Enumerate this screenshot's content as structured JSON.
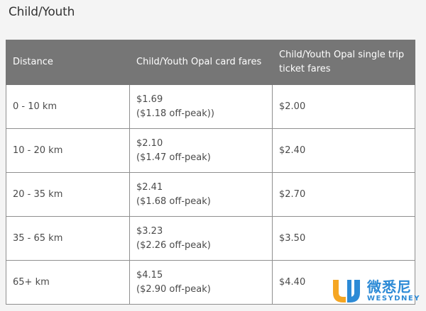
{
  "title": "Child/Youth",
  "table": {
    "headers": [
      "Distance",
      "Child/Youth Opal card fares",
      "Child/Youth Opal single trip ticket fares"
    ],
    "rows": [
      {
        "distance": "0 - 10 km",
        "opal_fare": "$1.69",
        "opal_offpeak": "($1.18 off-peak))",
        "single_fare": "$2.00"
      },
      {
        "distance": "10 - 20 km",
        "opal_fare": "$2.10",
        "opal_offpeak": "($1.47 off-peak)",
        "single_fare": "$2.40"
      },
      {
        "distance": "20 - 35 km",
        "opal_fare": "$2.41",
        "opal_offpeak": "($1.68 off-peak)",
        "single_fare": "$2.70"
      },
      {
        "distance": "35 - 65 km",
        "opal_fare": "$3.23",
        "opal_offpeak": "($2.26 off-peak)",
        "single_fare": "$3.50"
      },
      {
        "distance": "65+ km",
        "opal_fare": "$4.15",
        "opal_offpeak": "($2.90 off-peak)",
        "single_fare": "$4.40"
      }
    ]
  },
  "watermark": {
    "logo_icon": "wesydney-u-logo-icon",
    "chinese_text": "微悉尼",
    "english_text": "WESYDNEY",
    "color": "#2c8ad6"
  }
}
